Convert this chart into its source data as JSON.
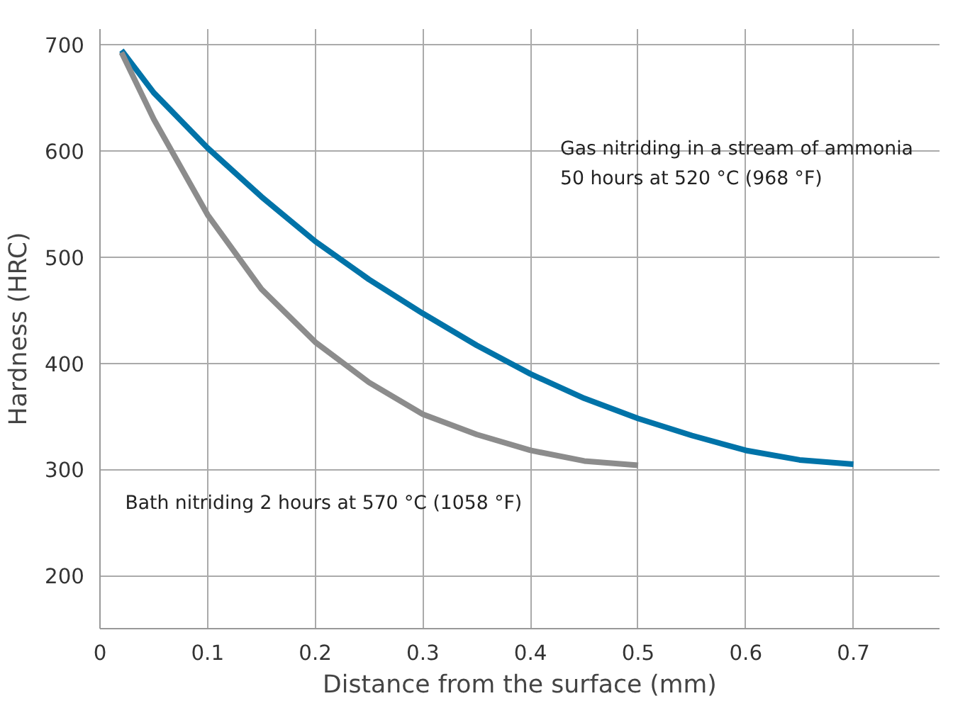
{
  "chart_data": {
    "type": "line",
    "xlabel": "Distance from the surface (mm)",
    "ylabel": "Hardness (HRC)",
    "xlim": [
      0,
      0.78
    ],
    "ylim": [
      150,
      715
    ],
    "xticks": [
      0,
      0.1,
      0.2,
      0.3,
      0.4,
      0.5,
      0.6,
      0.7
    ],
    "yticks": [
      200,
      300,
      400,
      500,
      600,
      700
    ],
    "grid": true,
    "series": [
      {
        "color": "#0073a8",
        "x": [
          0.02,
          0.05,
          0.1,
          0.15,
          0.2,
          0.25,
          0.3,
          0.35,
          0.4,
          0.45,
          0.5,
          0.55,
          0.6,
          0.65,
          0.7
        ],
        "values": [
          695,
          655,
          603,
          557,
          515,
          479,
          447,
          417,
          390,
          367,
          348,
          332,
          318,
          309,
          305
        ]
      },
      {
        "color": "#8c8c8c",
        "x": [
          0.02,
          0.05,
          0.1,
          0.15,
          0.2,
          0.25,
          0.3,
          0.35,
          0.4,
          0.45,
          0.5
        ],
        "values": [
          693,
          630,
          540,
          470,
          420,
          382,
          352,
          333,
          318,
          308,
          304
        ]
      }
    ],
    "annotations": [
      "Gas nitriding in a stream of ammonia\n50 hours at 520 °C (968 °F)",
      "Bath nitriding 2 hours at 570 °C (1058 °F)"
    ]
  }
}
